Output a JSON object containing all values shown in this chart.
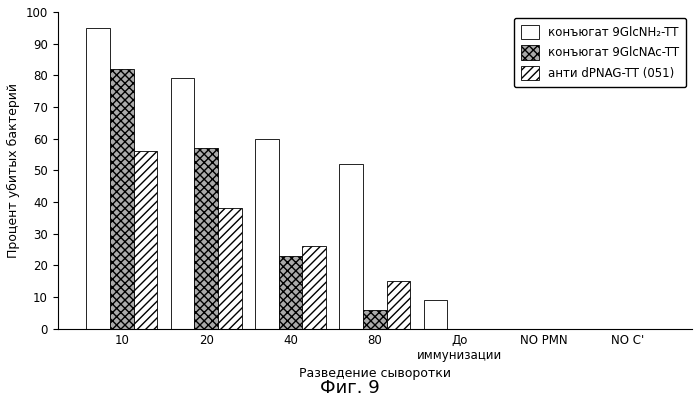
{
  "title": "Фиг. 9",
  "xlabel": "Разведение сыворотки",
  "ylabel": "Процент убитых бактерий",
  "ylim": [
    0,
    100
  ],
  "yticks": [
    0,
    10,
    20,
    30,
    40,
    50,
    60,
    70,
    80,
    90,
    100
  ],
  "categories": [
    "10",
    "20",
    "40",
    "80",
    "До\nиммунизации",
    "NO PMN",
    "NO C'"
  ],
  "series": [
    {
      "label": "конъюгат 9GlcNH₂-TT",
      "values": [
        95,
        79,
        60,
        52,
        9,
        0,
        0
      ],
      "hatch": "",
      "facecolor": "#ffffff",
      "edgecolor": "#000000"
    },
    {
      "label": "конъюгат 9GlcNAc-TT",
      "values": [
        82,
        57,
        23,
        6,
        0,
        0,
        0
      ],
      "hatch": "xxxx",
      "facecolor": "#aaaaaa",
      "edgecolor": "#000000"
    },
    {
      "label": "анти dPNAG-TT (051)",
      "values": [
        56,
        38,
        26,
        15,
        0,
        0,
        0
      ],
      "hatch": "////",
      "facecolor": "#ffffff",
      "edgecolor": "#000000"
    }
  ],
  "bar_width": 0.28,
  "legend_loc": "upper right",
  "background_color": "#ffffff",
  "fontsize_axis_label": 9,
  "fontsize_tick": 8.5,
  "fontsize_title": 13,
  "fontsize_legend": 8.5
}
